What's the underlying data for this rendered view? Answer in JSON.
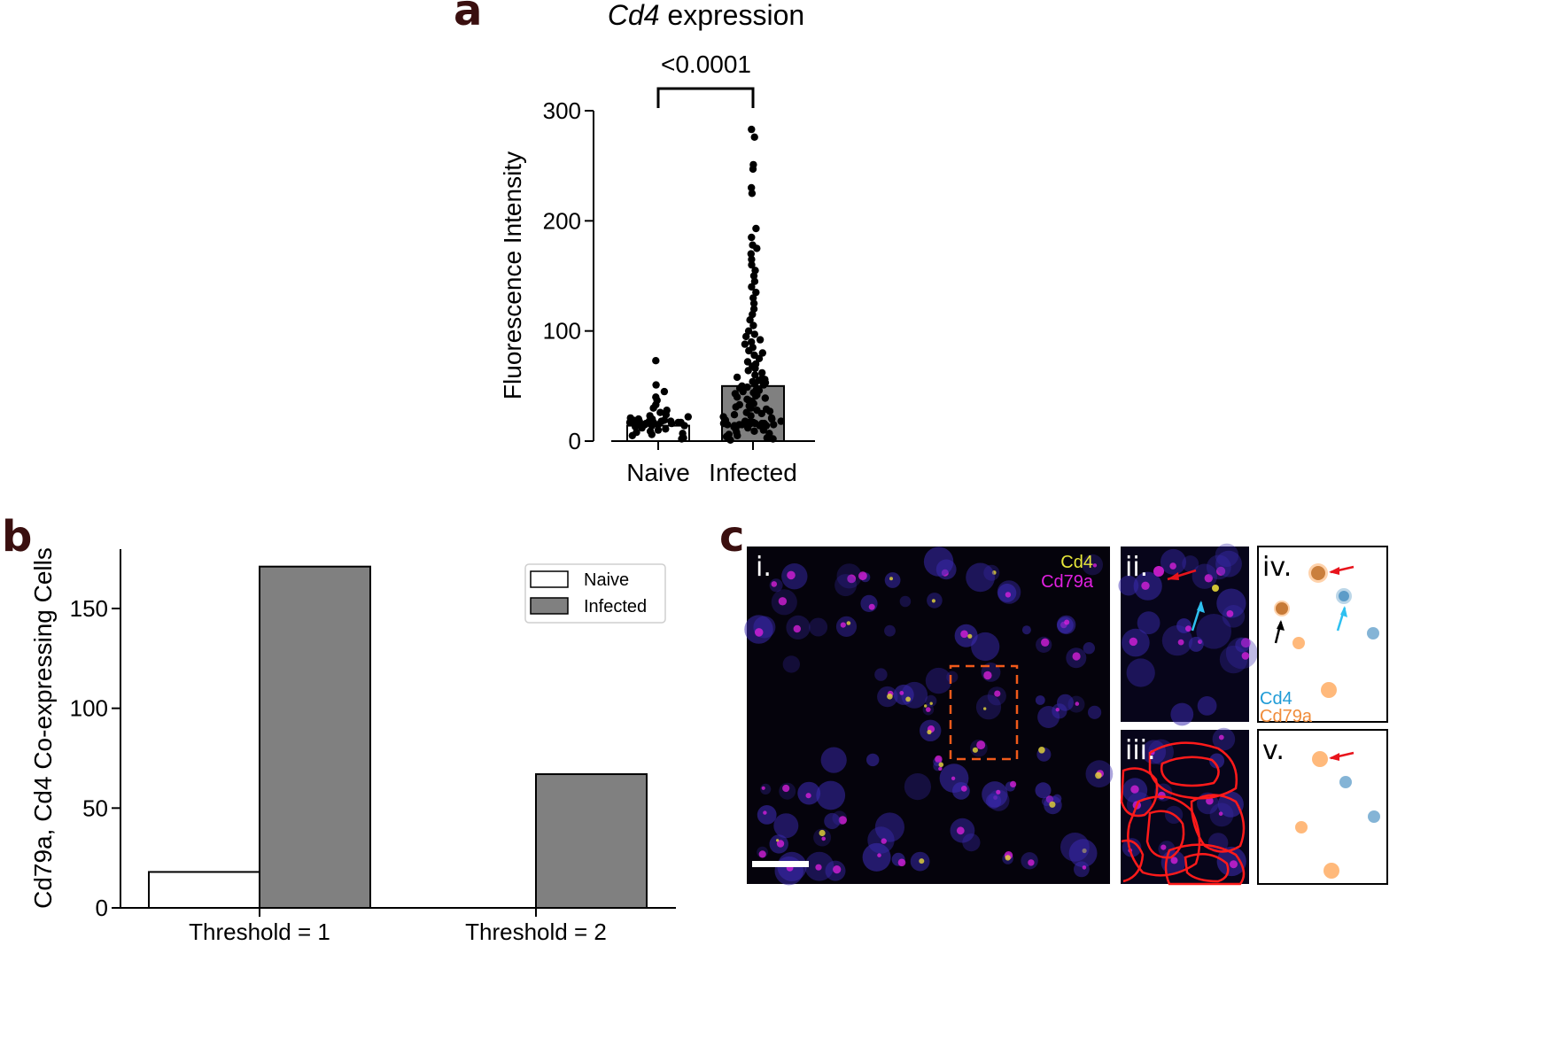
{
  "panel_labels": {
    "a": "a",
    "b": "b",
    "c": "c"
  },
  "chart_data": [
    {
      "id": "a",
      "type": "bar",
      "title_italic": "Cd4",
      "title_rest": " expression",
      "significance": "<0.0001",
      "ylabel": "Fluorescence Intensity",
      "categories": [
        "Naive",
        "Infected"
      ],
      "values": [
        14,
        50
      ],
      "ylim": [
        0,
        300
      ],
      "yticks": [
        0,
        100,
        200,
        300
      ],
      "bar_colors": [
        "#ffffff",
        "#808080"
      ],
      "points": {
        "Naive": [
          2,
          3,
          5,
          6,
          7,
          8,
          9,
          10,
          11,
          12,
          13,
          14,
          14,
          15,
          15,
          15,
          16,
          16,
          16,
          16,
          17,
          17,
          17,
          17,
          17,
          18,
          18,
          18,
          18,
          19,
          19,
          20,
          20,
          21,
          22,
          23,
          24,
          26,
          28,
          30,
          33,
          37,
          40,
          45,
          51,
          73
        ],
        "Infected": [
          1,
          2,
          3,
          4,
          5,
          6,
          7,
          8,
          9,
          10,
          11,
          12,
          13,
          14,
          14,
          14,
          15,
          15,
          15,
          15,
          15,
          16,
          16,
          16,
          16,
          16,
          17,
          17,
          17,
          18,
          18,
          19,
          20,
          21,
          22,
          23,
          24,
          25,
          26,
          27,
          28,
          29,
          30,
          31,
          32,
          33,
          34,
          35,
          36,
          37,
          38,
          39,
          40,
          41,
          42,
          43,
          44,
          45,
          46,
          47,
          48,
          49,
          50,
          51,
          52,
          53,
          54,
          55,
          56,
          57,
          58,
          60,
          62,
          64,
          66,
          68,
          70,
          72,
          75,
          78,
          80,
          82,
          85,
          88,
          90,
          92,
          95,
          97,
          100,
          105,
          110,
          115,
          120,
          125,
          130,
          135,
          140,
          145,
          150,
          155,
          160,
          165,
          170,
          175,
          178,
          185,
          193,
          225,
          230,
          247,
          251,
          276,
          283
        ]
      }
    },
    {
      "id": "b",
      "type": "bar",
      "ylabel": "Cd79a, Cd4 Co-expressing Cells",
      "categories": [
        "Threshold = 1",
        "Threshold = 2"
      ],
      "series": [
        {
          "name": "Naive",
          "values": [
            18,
            0
          ],
          "color": "#ffffff"
        },
        {
          "name": "Infected",
          "values": [
            171,
            67
          ],
          "color": "#808080"
        }
      ],
      "ylim": [
        0,
        180
      ],
      "yticks": [
        0,
        50,
        100,
        150
      ],
      "legend": "top-right"
    }
  ],
  "panel_c": {
    "sub_labels": [
      "i.",
      "ii.",
      "iii.",
      "iv.",
      "v."
    ],
    "legend_i": [
      {
        "name": "Cd4",
        "color": "#e8e83a"
      },
      {
        "name": "Cd79a",
        "color": "#e020e0"
      }
    ],
    "legend_iv": [
      {
        "name": "Cd4",
        "color": "#1f9bd6"
      },
      {
        "name": "Cd79a",
        "color": "#f08c3a"
      }
    ],
    "colors": {
      "cd4_dot": "#1f77b4",
      "cd79a_dot": "#ff7f0e",
      "overlap_dot": "#a06a3a",
      "arrow_red": "#e8141c",
      "arrow_cyan": "#2ec0f0",
      "roi_box": "#f05a1a",
      "segmentation": "#ff1a1a"
    }
  }
}
